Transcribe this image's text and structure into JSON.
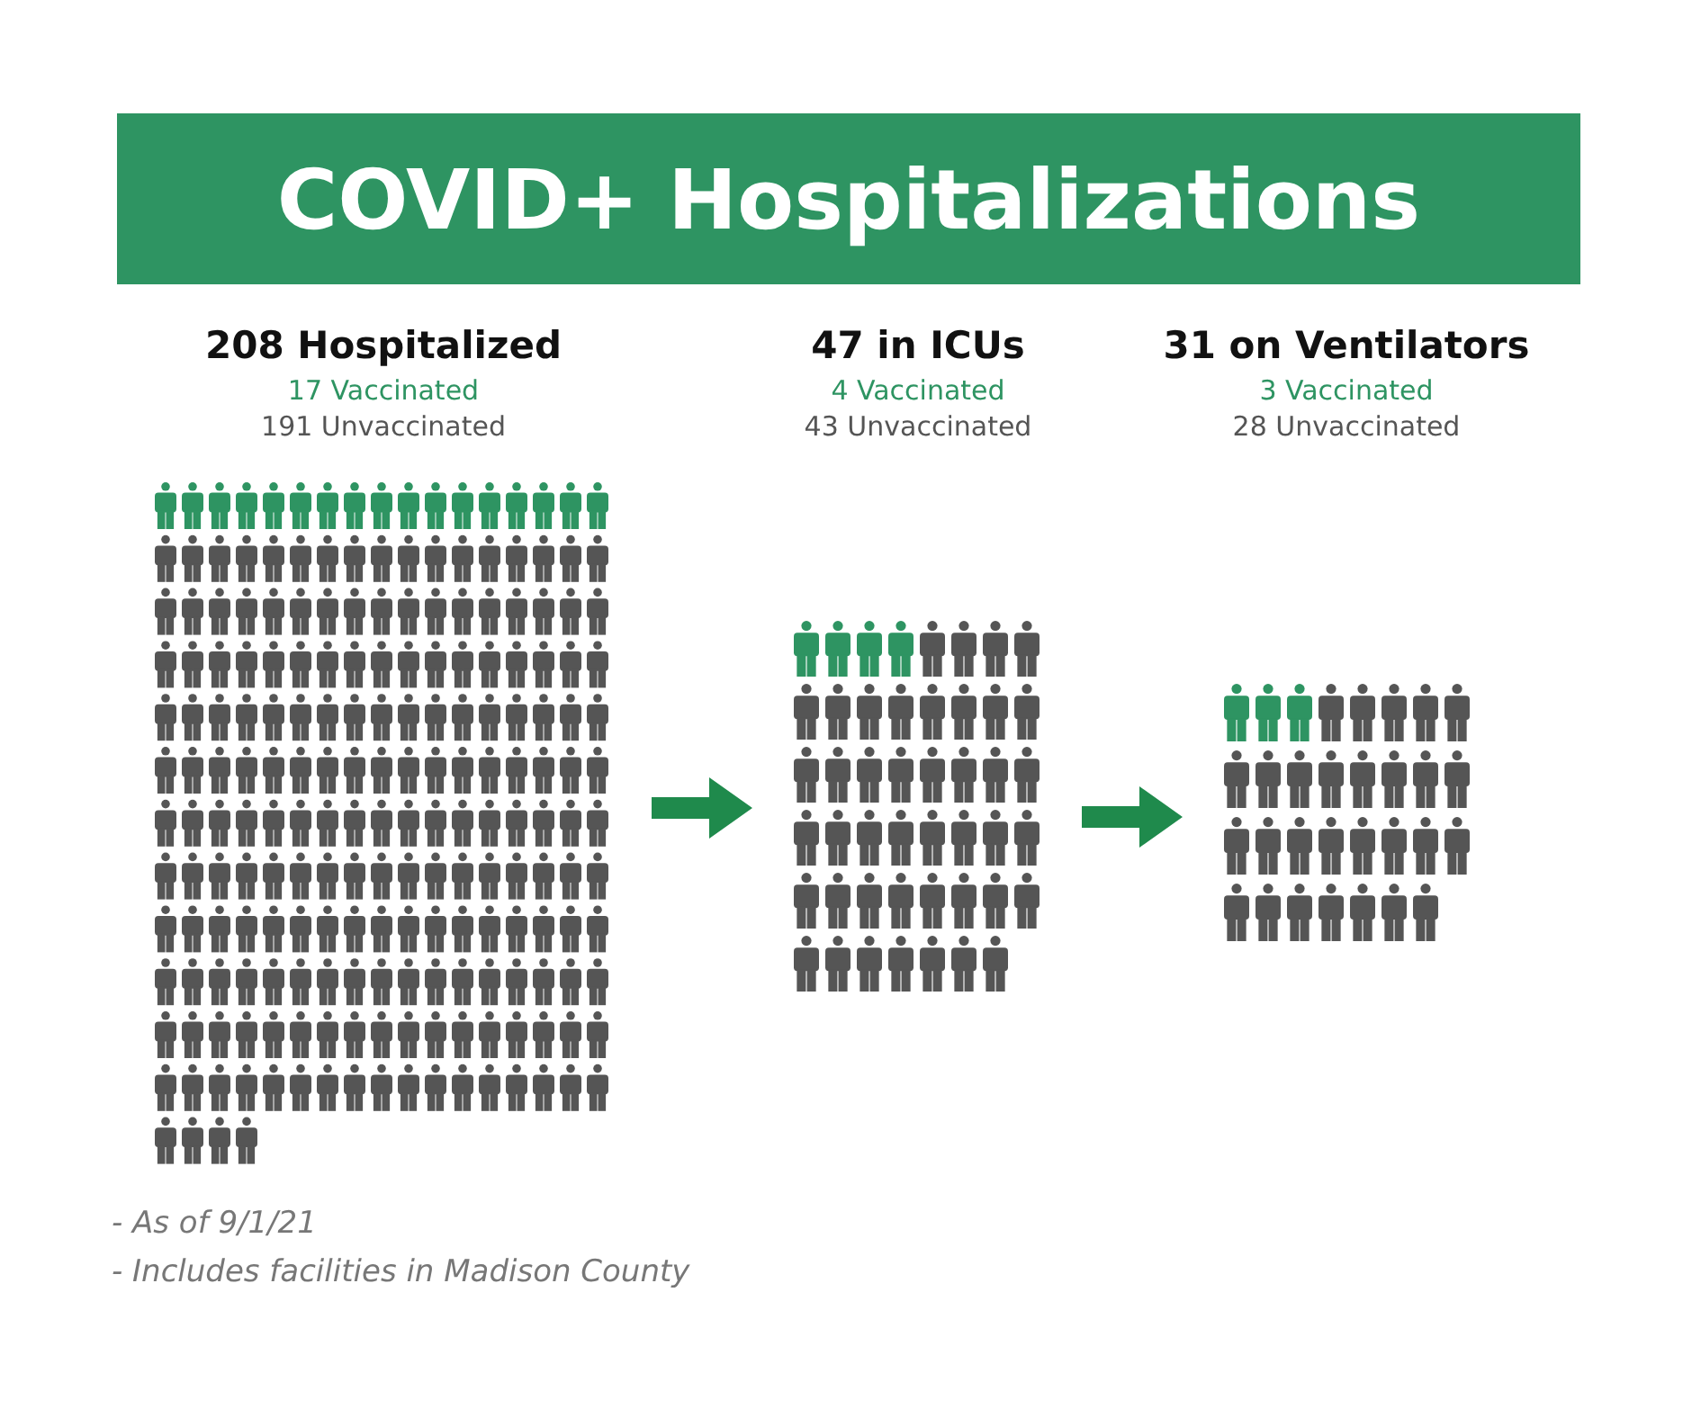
{
  "chart_data": {
    "type": "other",
    "title": "COVID+ Hospitalizations",
    "categories": [
      "208 Hospitalized",
      "47 in ICUs",
      "31 on Ventilators"
    ],
    "series": [
      {
        "name": "Vaccinated",
        "color": "#2e9462",
        "values": [
          17,
          4,
          3
        ]
      },
      {
        "name": "Unvaccinated",
        "color": "#555555",
        "values": [
          191,
          43,
          28
        ]
      }
    ],
    "data_labels": true,
    "annotations": [
      "- As of 9/1/21",
      "- Includes facilities in Madison County"
    ]
  }
}
